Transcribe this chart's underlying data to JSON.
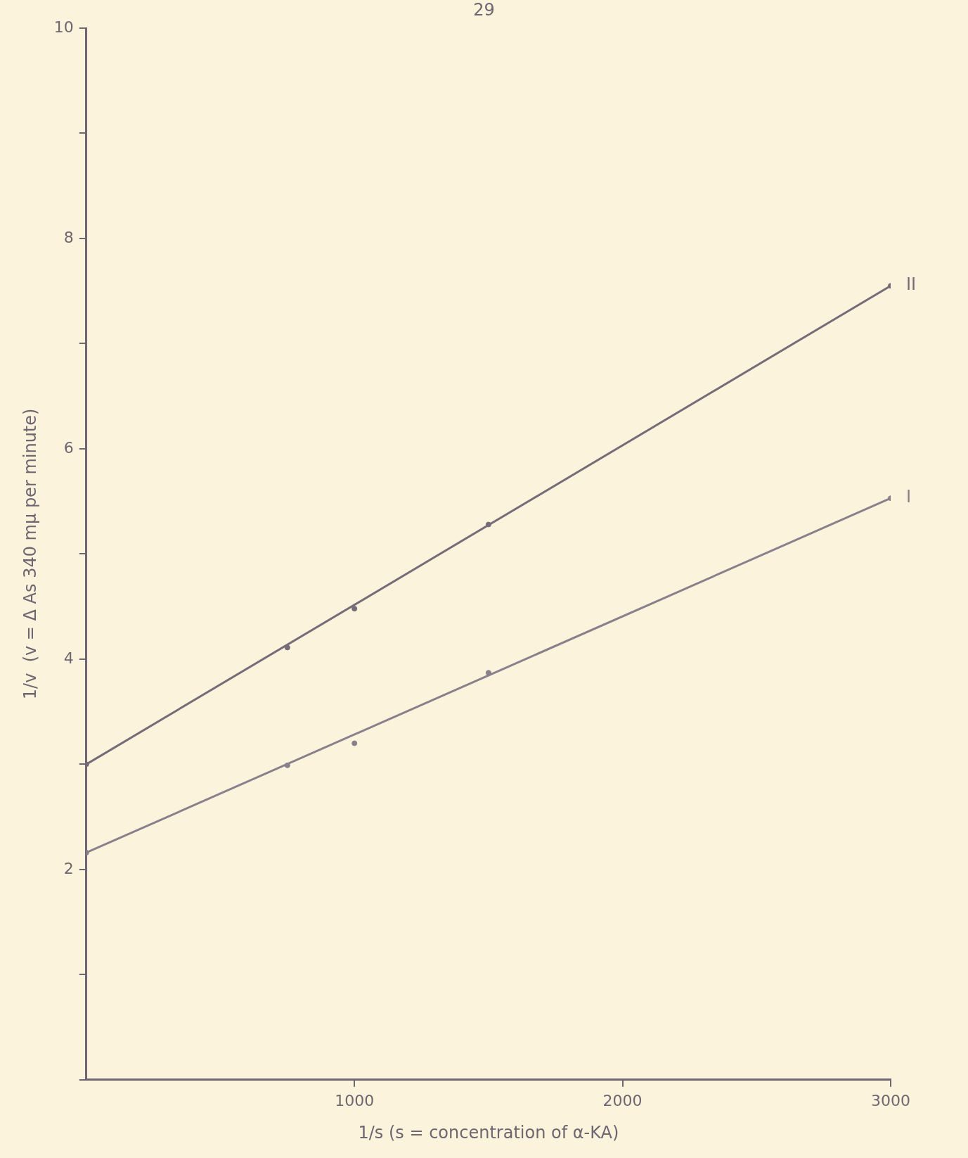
{
  "chart_data": {
    "type": "scatter",
    "xlabel": "1/s (s = concentration of α-KA)",
    "ylabel": "1/v  (v = Δ As 340 mμ per minute)",
    "annotations": [
      "29"
    ],
    "xlim": [
      0,
      3000
    ],
    "xticks": [
      1000,
      2000,
      3000
    ],
    "ylim": [
      0,
      10
    ],
    "yticks": [
      {
        "value": 0,
        "label": null
      },
      {
        "value": 1,
        "label": null
      },
      2,
      {
        "value": 3,
        "label": null
      },
      4,
      {
        "value": 5,
        "label": null
      },
      6,
      {
        "value": 7,
        "label": null
      },
      8,
      {
        "value": 9,
        "label": null
      },
      10
    ],
    "grid": false,
    "legend": false,
    "series": [
      {
        "name": "II",
        "type": "line",
        "marker": "none",
        "color": "#766c78",
        "x": [
          0,
          3000
        ],
        "values": [
          3.0,
          7.55
        ]
      },
      {
        "name": "I",
        "type": "line",
        "marker": "none",
        "color": "#8a808c",
        "x": [
          0,
          3000
        ],
        "values": [
          2.16,
          5.53
        ]
      },
      {
        "type": "scatter",
        "marker": "circle",
        "color": "#766c78",
        "x": [
          0,
          750,
          1000,
          1500,
          3000
        ],
        "values": [
          3.0,
          4.11,
          4.48,
          5.28,
          7.55
        ]
      },
      {
        "type": "scatter",
        "marker": "circle",
        "color": "#8a808c",
        "x": [
          0,
          750,
          1000,
          1500,
          3000
        ],
        "values": [
          2.16,
          2.99,
          3.2,
          3.87,
          5.53
        ]
      }
    ]
  }
}
